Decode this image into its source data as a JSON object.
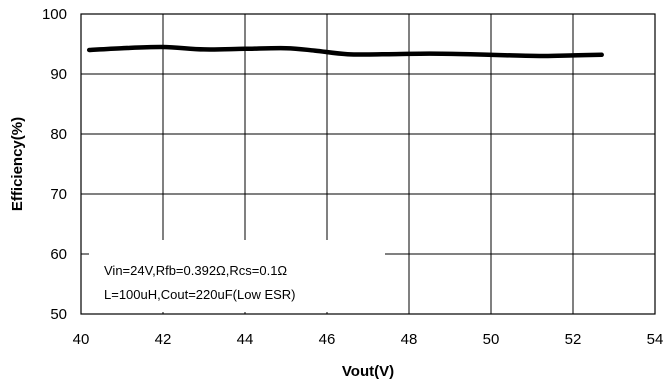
{
  "chart_data": {
    "type": "line",
    "xlabel": "Vout(V)",
    "ylabel": "Efficiency(%)",
    "xlim": [
      40,
      54
    ],
    "ylim": [
      50,
      100
    ],
    "xticks": [
      "40",
      "42",
      "44",
      "46",
      "48",
      "50",
      "52",
      "54"
    ],
    "yticks": [
      "50",
      "60",
      "70",
      "80",
      "90",
      "100"
    ],
    "grid": true,
    "series": [
      {
        "x": [
          40.2,
          41,
          42,
          43,
          44,
          45,
          45.7,
          46.5,
          47.5,
          48.5,
          49.5,
          50.5,
          51.3,
          52,
          52.7
        ],
        "values": [
          94.0,
          94.3,
          94.5,
          94.1,
          94.2,
          94.3,
          93.9,
          93.3,
          93.3,
          93.4,
          93.3,
          93.1,
          93.0,
          93.1,
          93.2
        ]
      }
    ],
    "annotation": {
      "line1": "Vin=24V,Rfb=0.392Ω,Rcs=0.1Ω",
      "line2": "L=100uH,Cout=220uF(Low ESR)"
    }
  }
}
